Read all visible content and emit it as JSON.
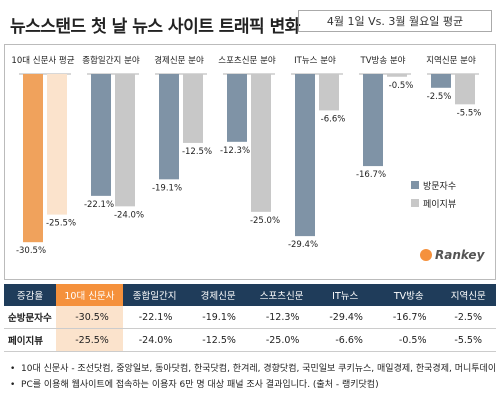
{
  "header": {
    "title": "뉴스스탠드 첫 날 뉴스 사이트 트래픽 변화",
    "subtitle": "4월 1일 Vs. 3월 월요일 평균"
  },
  "logo": {
    "text": "Rankey"
  },
  "chart_data": {
    "type": "bar",
    "categories": [
      "10대 신문사 평균",
      "종합일간지 분야",
      "경제신문 분야",
      "스포츠신문 분야",
      "IT뉴스 분야",
      "TV방송 분야",
      "지역신문 분야"
    ],
    "series": [
      {
        "name": "방문자수",
        "values": [
          -30.5,
          -22.1,
          -19.1,
          -12.3,
          -29.4,
          -16.7,
          -2.5
        ]
      },
      {
        "name": "페이지뷰",
        "values": [
          -25.5,
          -24.0,
          -12.5,
          -25.0,
          -6.6,
          -0.5,
          -5.5
        ]
      }
    ],
    "value_labels": {
      "방문자수": [
        "-30.5%",
        "-22.1%",
        "-19.1%",
        "-12.3%",
        "-29.4%",
        "-16.7%",
        "-2.5%"
      ],
      "페이지뷰": [
        "-25.5%",
        "-24.0%",
        "-12.5%",
        "-25.0%",
        "-6.6%",
        "-0.5%",
        "-5.5%"
      ]
    },
    "ylim": [
      -35,
      0
    ],
    "legend": "right",
    "colors": {
      "visitors": "#7f93a6",
      "pageviews": "#c8c8c8",
      "highlight_visitors": "#f0a25c",
      "highlight_pageviews": "#fbe3cc"
    }
  },
  "table": {
    "headers": [
      "증감율",
      "10대 신문사",
      "종합일간지",
      "경제신문",
      "스포츠신문",
      "IT뉴스",
      "TV방송",
      "지역신문"
    ],
    "rows": [
      {
        "label": "순방문자수",
        "values": [
          "-30.5%",
          "-22.1%",
          "-19.1%",
          "-12.3%",
          "-29.4%",
          "-16.7%",
          "-2.5%"
        ]
      },
      {
        "label": "페이지뷰",
        "values": [
          "-25.5%",
          "-24.0%",
          "-12.5%",
          "-25.0%",
          "-6.6%",
          "-0.5%",
          "-5.5%"
        ]
      }
    ]
  },
  "notes": [
    "10대 신문사 - 조선닷컴, 중앙일보, 동아닷컴, 한국닷컴, 한겨레, 경향닷컴, 국민일보 쿠키뉴스, 매일경제, 한국경제, 머니투데이",
    "PC를 이용해 웹사이트에 접속하는 이용자 6만 명 대상 패널 조사 결과입니다. (출처 - 랭키닷컴)"
  ]
}
